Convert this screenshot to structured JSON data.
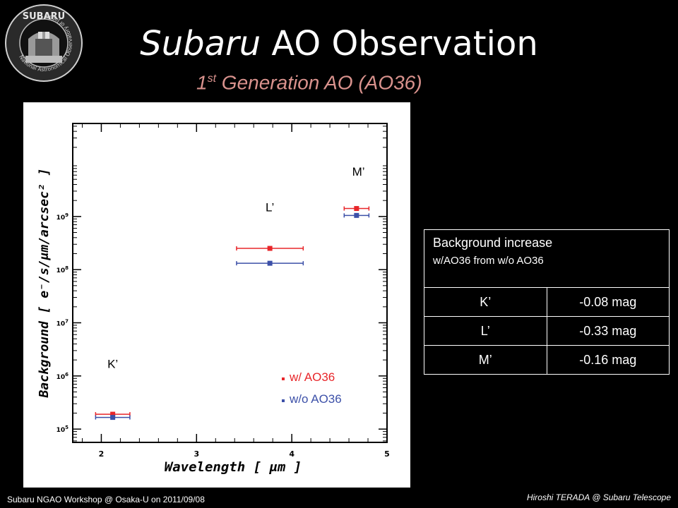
{
  "logo": {
    "top_text": "SUBARU",
    "ring_text": "National Astronomical Observatory of Japan"
  },
  "title": {
    "italic": "Subaru",
    "rest": " AO Observation"
  },
  "subtitle": {
    "prefix": "1",
    "sup": "st",
    "rest": " Generation AO (AO36)"
  },
  "chart_data": {
    "type": "scatter",
    "title": "",
    "xlabel": "Wavelength [ μm ]",
    "ylabel": "Background [ e⁻/s/μm/arcsec² ]",
    "xlim": [
      1.7,
      5.0
    ],
    "ylim_log10": [
      4.75,
      10.75
    ],
    "y_scale": "log",
    "x_ticks": [
      "2",
      "3",
      "4",
      "5"
    ],
    "y_ticks": [
      {
        "base": "10",
        "exp": "5"
      },
      {
        "base": "10",
        "exp": "6"
      },
      {
        "base": "10",
        "exp": "7"
      },
      {
        "base": "10",
        "exp": "8"
      },
      {
        "base": "10",
        "exp": "9"
      }
    ],
    "band_labels": [
      {
        "label": "K’",
        "x": 2.12,
        "log10y": 6.15
      },
      {
        "label": "L’",
        "x": 3.77,
        "log10y": 9.1
      },
      {
        "label": "M’",
        "x": 4.7,
        "log10y": 9.77
      }
    ],
    "series": [
      {
        "name": "w/ AO36",
        "color": "#e8262a",
        "points": [
          {
            "band": "K’",
            "x": 2.12,
            "xerr": 0.18,
            "log10y": 5.28
          },
          {
            "band": "L’",
            "x": 3.77,
            "xerr": 0.35,
            "log10y": 8.4
          },
          {
            "band": "M’",
            "x": 4.68,
            "xerr": 0.13,
            "log10y": 9.15
          }
        ]
      },
      {
        "name": "w/o AO36",
        "color": "#3c50a8",
        "points": [
          {
            "band": "K’",
            "x": 2.12,
            "xerr": 0.18,
            "log10y": 5.22
          },
          {
            "band": "L’",
            "x": 3.77,
            "xerr": 0.35,
            "log10y": 8.12
          },
          {
            "band": "M’",
            "x": 4.68,
            "xerr": 0.13,
            "log10y": 9.02
          }
        ]
      }
    ],
    "legend": "bottom-right"
  },
  "table": {
    "header_line1": "Background increase",
    "header_line2": "w/AO36 from w/o AO36",
    "rows": [
      {
        "band": "K’",
        "value": "-0.08 mag"
      },
      {
        "band": "L’",
        "value": "-0.33 mag"
      },
      {
        "band": "M’",
        "value": "-0.16 mag"
      }
    ]
  },
  "footer": {
    "left": "Subaru NGAO Workshop @ Osaka-U on 2011/09/08",
    "right": "Hiroshi TERADA @ Subaru Telescope"
  }
}
